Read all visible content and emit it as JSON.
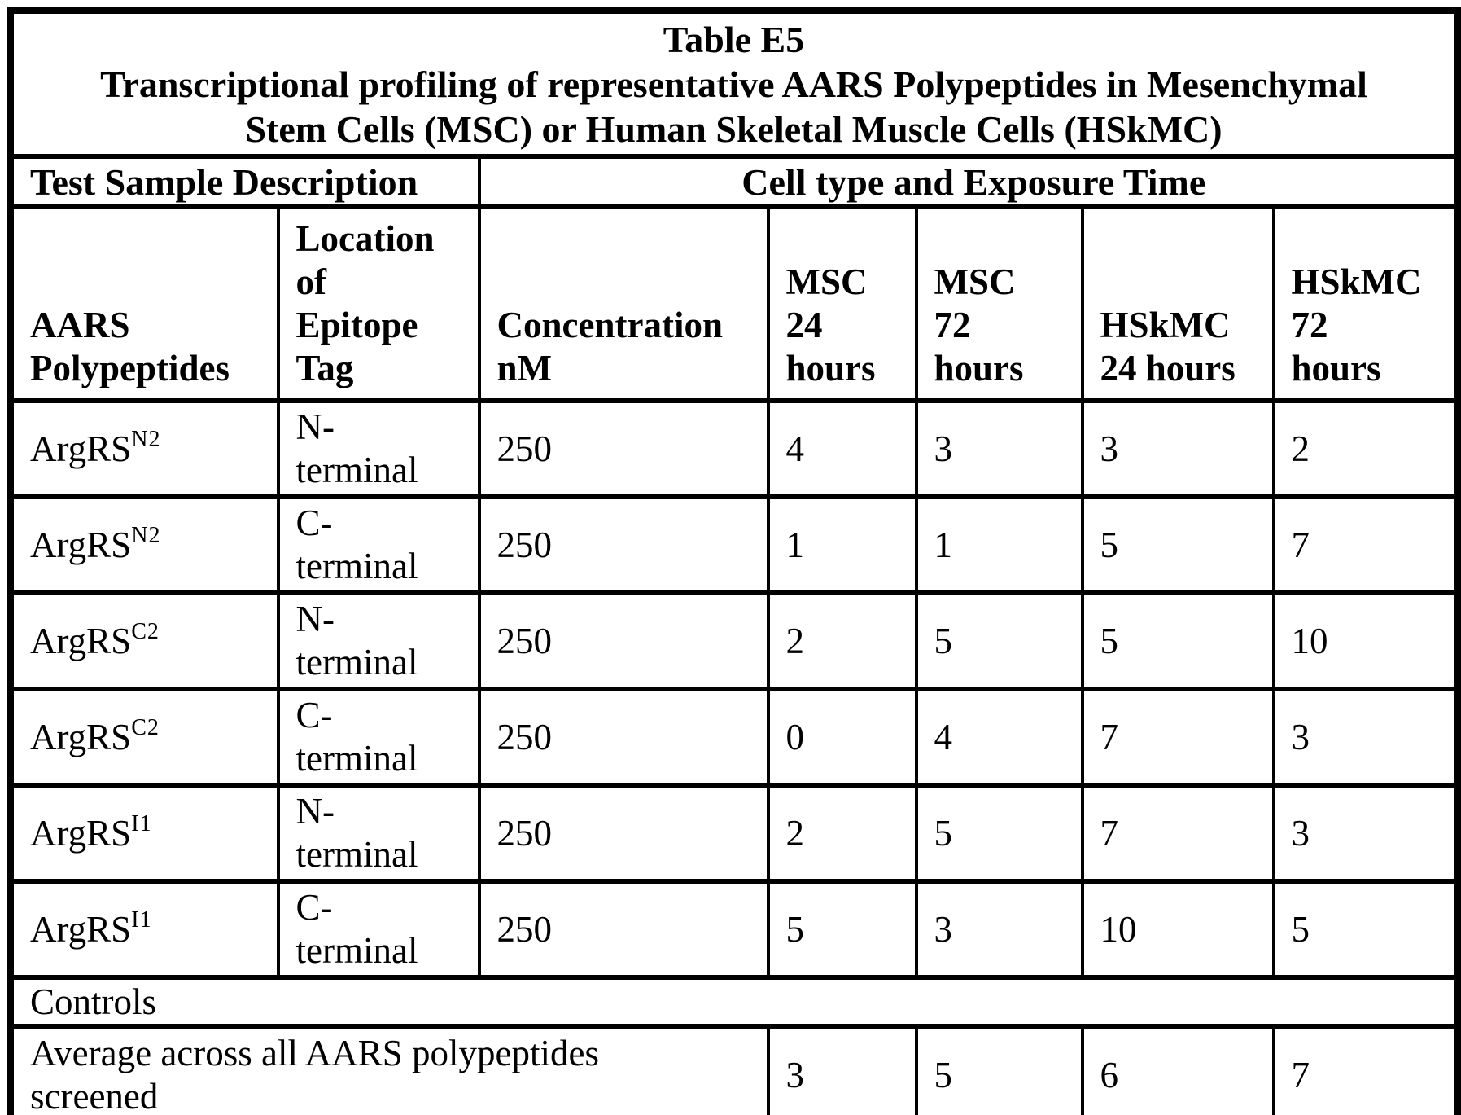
{
  "table": {
    "title_lines": [
      "Table E5",
      "Transcriptional profiling of representative AARS Polypeptides in Mesenchymal",
      "Stem Cells (MSC) or Human Skeletal Muscle Cells (HSkMC)"
    ],
    "group_headers": {
      "left": "Test Sample Description",
      "right": "Cell type and Exposure Time"
    },
    "columns": [
      {
        "label": "AARS Polypeptides",
        "label_lines": [
          "AARS",
          "Polypeptides"
        ]
      },
      {
        "label": "Location of Epitope Tag",
        "label_lines": [
          "Location",
          "of",
          "Epitope",
          "Tag"
        ]
      },
      {
        "label": "Concentration nM",
        "label_lines": [
          "Concentration",
          "nM"
        ]
      },
      {
        "label": "MSC 24 hours",
        "label_lines": [
          "MSC",
          "24",
          "hours"
        ]
      },
      {
        "label": "MSC 72 hours",
        "label_lines": [
          "MSC",
          "72",
          "hours"
        ]
      },
      {
        "label": "HSkMC 24 hours",
        "label_lines": [
          "HSkMC",
          "24 hours"
        ]
      },
      {
        "label": "HSkMC 72 hours",
        "label_lines": [
          "HSkMC",
          "72",
          "hours"
        ]
      }
    ],
    "rows": [
      {
        "polypeptide_base": "ArgRS",
        "polypeptide_sup": "N2",
        "tag_lines": [
          "N-",
          "terminal"
        ],
        "concentration": "250",
        "values": [
          "4",
          "3",
          "3",
          "2"
        ]
      },
      {
        "polypeptide_base": "ArgRS",
        "polypeptide_sup": "N2",
        "tag_lines": [
          "C-",
          "terminal"
        ],
        "concentration": "250",
        "values": [
          "1",
          "1",
          "5",
          "7"
        ]
      },
      {
        "polypeptide_base": "ArgRS",
        "polypeptide_sup": "C2",
        "tag_lines": [
          "N-",
          "terminal"
        ],
        "concentration": "250",
        "values": [
          "2",
          "5",
          "5",
          "10"
        ]
      },
      {
        "polypeptide_base": "ArgRS",
        "polypeptide_sup": "C2",
        "tag_lines": [
          "C-",
          "terminal"
        ],
        "concentration": "250",
        "values": [
          "0",
          "4",
          "7",
          "3"
        ]
      },
      {
        "polypeptide_base": "ArgRS",
        "polypeptide_sup": "I1",
        "tag_lines": [
          "N-",
          "terminal"
        ],
        "concentration": "250",
        "values": [
          "2",
          "5",
          "7",
          "3"
        ]
      },
      {
        "polypeptide_base": "ArgRS",
        "polypeptide_sup": "I1",
        "tag_lines": [
          "C-",
          "terminal"
        ],
        "concentration": "250",
        "values": [
          "5",
          "3",
          "10",
          "5"
        ]
      }
    ],
    "controls_label": "Controls",
    "average_row": {
      "label_lines": [
        "Average across all AARS polypeptides",
        "screened"
      ],
      "values": [
        "3",
        "5",
        "6",
        "7"
      ]
    }
  },
  "colors": {
    "background": "#ffffff",
    "text": "#000000",
    "border": "#000000"
  }
}
